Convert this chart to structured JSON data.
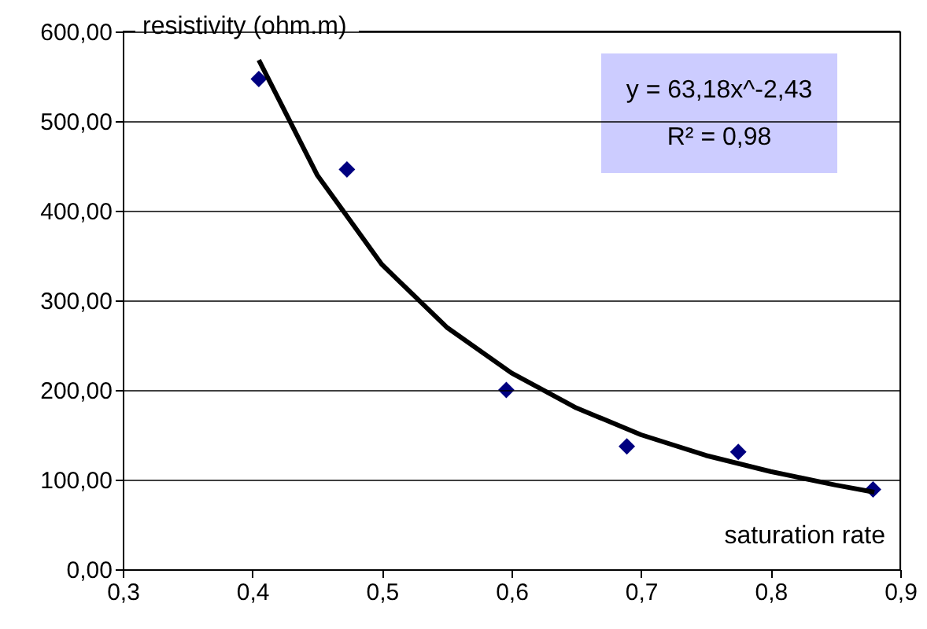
{
  "chart_data": {
    "type": "scatter",
    "xlabel": "saturation rate",
    "ylabel": "resistivity (ohm.m)",
    "series": [
      {
        "color": "#000080",
        "marker": "diamond",
        "x": [
          0.405,
          0.473,
          0.596,
          0.689,
          0.775,
          0.879
        ],
        "values": [
          547,
          446,
          200,
          137,
          131,
          89
        ]
      },
      {
        "type": "line",
        "color": "#000000",
        "line_style": "solid",
        "x": [
          0.405,
          0.45,
          0.5,
          0.55,
          0.6,
          0.65,
          0.7,
          0.75,
          0.8,
          0.85,
          0.88
        ],
        "values": [
          568,
          440,
          340,
          270,
          219,
          180,
          150,
          127,
          109,
          94,
          86
        ]
      }
    ],
    "xlim": [
      0.3,
      0.9
    ],
    "ylim": [
      0,
      600
    ],
    "xticks": [
      {
        "value": 0.3,
        "label": "0,3"
      },
      {
        "value": 0.4,
        "label": "0,4"
      },
      {
        "value": 0.5,
        "label": "0,5"
      },
      {
        "value": 0.6,
        "label": "0,6"
      },
      {
        "value": 0.7,
        "label": "0,7"
      },
      {
        "value": 0.8,
        "label": "0,8"
      },
      {
        "value": 0.9,
        "label": "0,9"
      }
    ],
    "yticks": [
      {
        "value": 0,
        "label": "0,00"
      },
      {
        "value": 100,
        "label": "100,00"
      },
      {
        "value": 200,
        "label": "200,00"
      },
      {
        "value": 300,
        "label": "300,00"
      },
      {
        "value": 400,
        "label": "400,00"
      },
      {
        "value": 500,
        "label": "500,00"
      },
      {
        "value": 600,
        "label": "600,00"
      }
    ],
    "grid": "y",
    "annotations": [
      "y = 63,18x^-2,43",
      "R² = 0,98"
    ]
  }
}
